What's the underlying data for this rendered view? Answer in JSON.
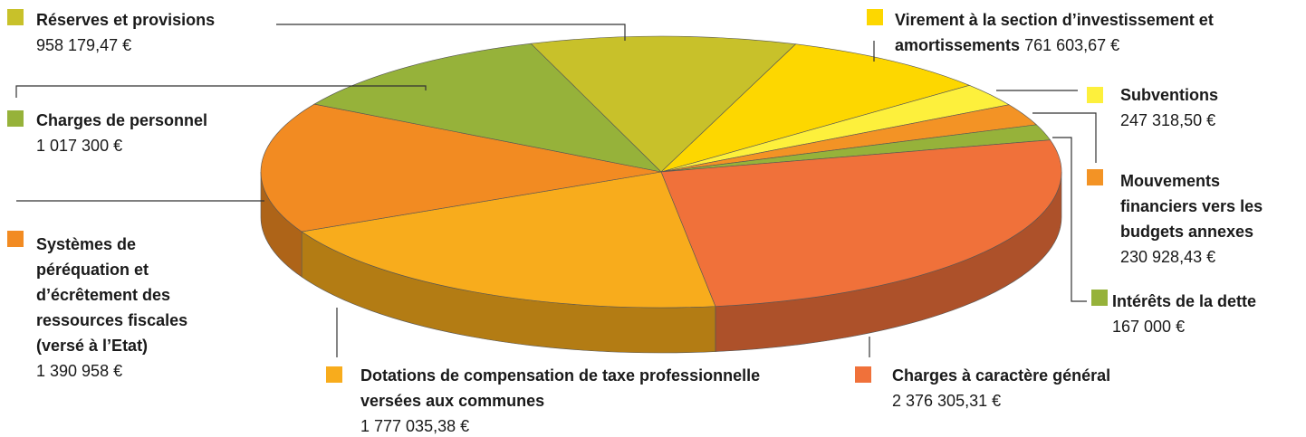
{
  "chart_data": {
    "type": "pie",
    "categories": [
      "Réserves et provisions",
      "Virement à la section d’investissement et amortissements",
      "Subventions",
      "Mouvements financiers vers les budgets annexes",
      "Intérêts de la dette",
      "Charges à caractère général",
      "Dotations de compensation de taxe professionnelle versées aux communes",
      "Systèmes de péréquation et d’écrêtement des ressources fiscales (versé à l’Etat)",
      "Charges de personnel"
    ],
    "values": [
      958179.47,
      761603.67,
      247318.5,
      230928.43,
      167000,
      2376305.31,
      1777035.38,
      1390958,
      1017300
    ],
    "value_labels": [
      "958 179,47 €",
      "761 603,67 €",
      "247 318,50 €",
      "230 928,43 €",
      "167 000 €",
      "2 376 305,31 €",
      "1 777 035,38 €",
      "1 390 958 €",
      "1 017 300 €"
    ],
    "colors": [
      "#c8c12a",
      "#fdd700",
      "#fdf03c",
      "#f39325",
      "#96b23a",
      "#f0713a",
      "#f8ac1c",
      "#f28b22",
      "#96b23a"
    ]
  }
}
